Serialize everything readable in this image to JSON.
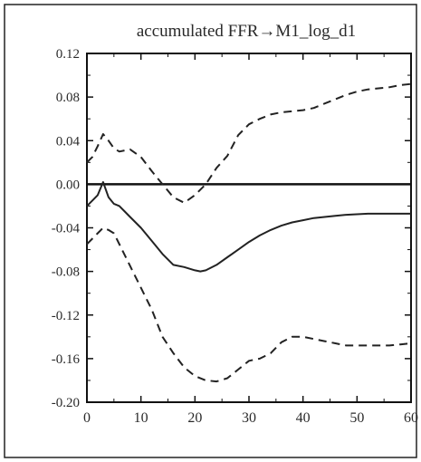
{
  "chart_data": {
    "type": "line",
    "title": "accumulated FFR→M1_log_d1",
    "xlabel": "",
    "ylabel": "",
    "xlim": [
      0,
      60
    ],
    "ylim": [
      -0.2,
      0.12
    ],
    "x_ticks": [
      "0",
      "10",
      "20",
      "30",
      "40",
      "50",
      "60"
    ],
    "y_ticks": [
      "0.12",
      "0.08",
      "0.04",
      "0.00",
      "-0.04",
      "-0.08",
      "-0.12",
      "-0.16",
      "-0.20"
    ],
    "zero_line": 0.0,
    "grid": false,
    "series": [
      {
        "style": "solid",
        "x": [
          0,
          1,
          2,
          3,
          4,
          5,
          6,
          7,
          8,
          10,
          12,
          14,
          16,
          18,
          20,
          21,
          22,
          24,
          26,
          28,
          30,
          32,
          34,
          36,
          38,
          40,
          42,
          44,
          46,
          48,
          50,
          52,
          55,
          58,
          60
        ],
        "y": [
          -0.02,
          -0.015,
          -0.01,
          0.002,
          -0.012,
          -0.018,
          -0.02,
          -0.025,
          -0.03,
          -0.04,
          -0.052,
          -0.064,
          -0.074,
          -0.076,
          -0.079,
          -0.08,
          -0.079,
          -0.074,
          -0.067,
          -0.06,
          -0.053,
          -0.047,
          -0.042,
          -0.038,
          -0.035,
          -0.033,
          -0.031,
          -0.03,
          -0.029,
          -0.028,
          -0.0275,
          -0.027,
          -0.027,
          -0.027,
          -0.027
        ]
      },
      {
        "style": "dashed",
        "x": [
          0,
          1,
          2,
          3,
          4,
          5,
          6,
          8,
          10,
          12,
          14,
          16,
          18,
          20,
          22,
          24,
          26,
          28,
          30,
          32,
          34,
          36,
          38,
          40,
          42,
          44,
          46,
          48,
          50,
          52,
          54,
          56,
          58,
          60
        ],
        "y": [
          0.02,
          0.025,
          0.035,
          0.046,
          0.04,
          0.033,
          0.03,
          0.032,
          0.025,
          0.012,
          0.0,
          -0.012,
          -0.017,
          -0.01,
          0.0,
          0.015,
          0.026,
          0.045,
          0.055,
          0.06,
          0.064,
          0.066,
          0.067,
          0.068,
          0.07,
          0.074,
          0.078,
          0.082,
          0.085,
          0.087,
          0.088,
          0.089,
          0.091,
          0.092
        ]
      },
      {
        "style": "dashed",
        "x": [
          0,
          1,
          2,
          3,
          4,
          5,
          6,
          8,
          10,
          12,
          14,
          16,
          18,
          20,
          22,
          24,
          26,
          28,
          30,
          32,
          34,
          36,
          38,
          40,
          42,
          44,
          46,
          48,
          50,
          52,
          54,
          56,
          58,
          60
        ],
        "y": [
          -0.055,
          -0.05,
          -0.045,
          -0.04,
          -0.042,
          -0.045,
          -0.055,
          -0.075,
          -0.095,
          -0.115,
          -0.14,
          -0.155,
          -0.168,
          -0.176,
          -0.18,
          -0.181,
          -0.178,
          -0.17,
          -0.162,
          -0.16,
          -0.155,
          -0.145,
          -0.14,
          -0.14,
          -0.142,
          -0.144,
          -0.146,
          -0.148,
          -0.148,
          -0.148,
          -0.148,
          -0.148,
          -0.147,
          -0.146
        ]
      }
    ]
  }
}
